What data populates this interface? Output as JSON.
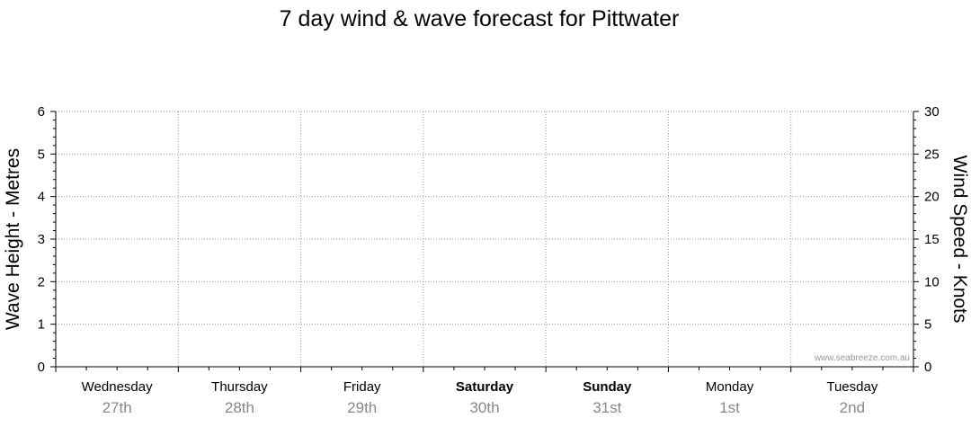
{
  "chart_data": {
    "type": "line",
    "title": "7 day wind & wave forecast for Pittwater",
    "ylabel_left": "Wave Height - Metres",
    "ylabel_right": "Wind Speed - Knots",
    "ylim_left": [
      0,
      6
    ],
    "ylim_right": [
      0,
      30
    ],
    "y_ticks_left": [
      "0",
      "1",
      "2",
      "3",
      "4",
      "5",
      "6"
    ],
    "y_ticks_right": [
      "0",
      "5",
      "10",
      "15",
      "20",
      "25",
      "30"
    ],
    "grid": true,
    "days": [
      {
        "day": "Wednesday",
        "date": "27th",
        "bold": false
      },
      {
        "day": "Thursday",
        "date": "28th",
        "bold": false
      },
      {
        "day": "Friday",
        "date": "29th",
        "bold": false
      },
      {
        "day": "Saturday",
        "date": "30th",
        "bold": true
      },
      {
        "day": "Sunday",
        "date": "31st",
        "bold": true
      },
      {
        "day": "Monday",
        "date": "1st",
        "bold": false
      },
      {
        "day": "Tuesday",
        "date": "2nd",
        "bold": false
      }
    ],
    "series": []
  },
  "watermark": "www.seabreeze.com.au"
}
